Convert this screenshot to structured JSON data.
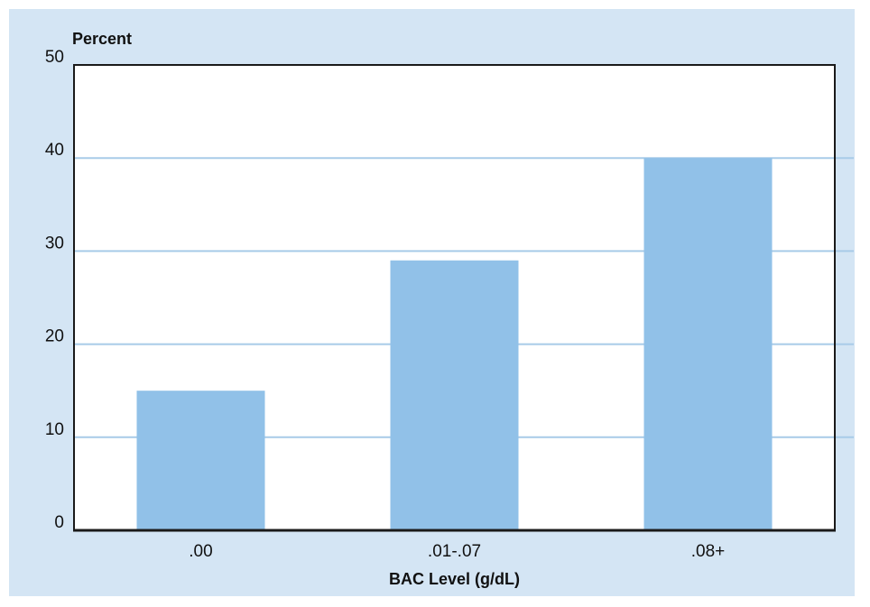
{
  "chart_data": {
    "type": "bar",
    "categories": [
      ".00",
      ".01-.07",
      ".08+"
    ],
    "values": [
      15,
      29,
      40
    ],
    "title": "",
    "xlabel": "BAC Level (g/dL)",
    "ylabel": "Percent",
    "ylim": [
      0,
      50
    ],
    "yticks": [
      0,
      10,
      20,
      30,
      40,
      50
    ],
    "grid": true,
    "colors": {
      "bar": "#91c1e8",
      "panel_background": "#d4e5f4",
      "plot_background": "#ffffff",
      "gridline": "#a8cbe8",
      "axis": "#1a1a1a"
    }
  }
}
